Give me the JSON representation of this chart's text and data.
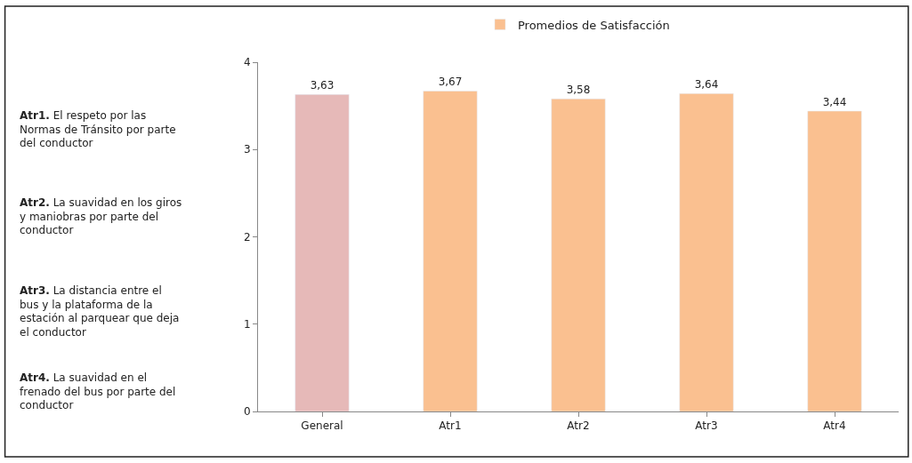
{
  "chart_data": {
    "type": "bar",
    "categories": [
      "General",
      "Atr1",
      "Atr2",
      "Atr3",
      "Atr4"
    ],
    "series": [
      {
        "name": "Promedios de Satisfacción",
        "color": "#fac090",
        "colors": [
          "#e6b9b8",
          "#fac090",
          "#fac090",
          "#fac090",
          "#fac090"
        ],
        "values": [
          3.63,
          3.67,
          3.58,
          3.64,
          3.44
        ],
        "value_labels": [
          "3,63",
          "3,67",
          "3,58",
          "3,64",
          "3,44"
        ]
      }
    ],
    "ylim": [
      0,
      4
    ],
    "yticks": [
      0,
      1,
      2,
      3,
      4
    ],
    "legend": "top",
    "annotations": [
      "Atr1. El respeto por las Normas de Tránsito por parte del conductor",
      "Atr2. La suavidad en los giros y maniobras por parte del conductor",
      "Atr3. La distancia entre el bus y la plataforma de la estación al parquear que deja el conductor",
      "Atr4. La suavidad en el frenado del bus por parte del conductor"
    ]
  }
}
